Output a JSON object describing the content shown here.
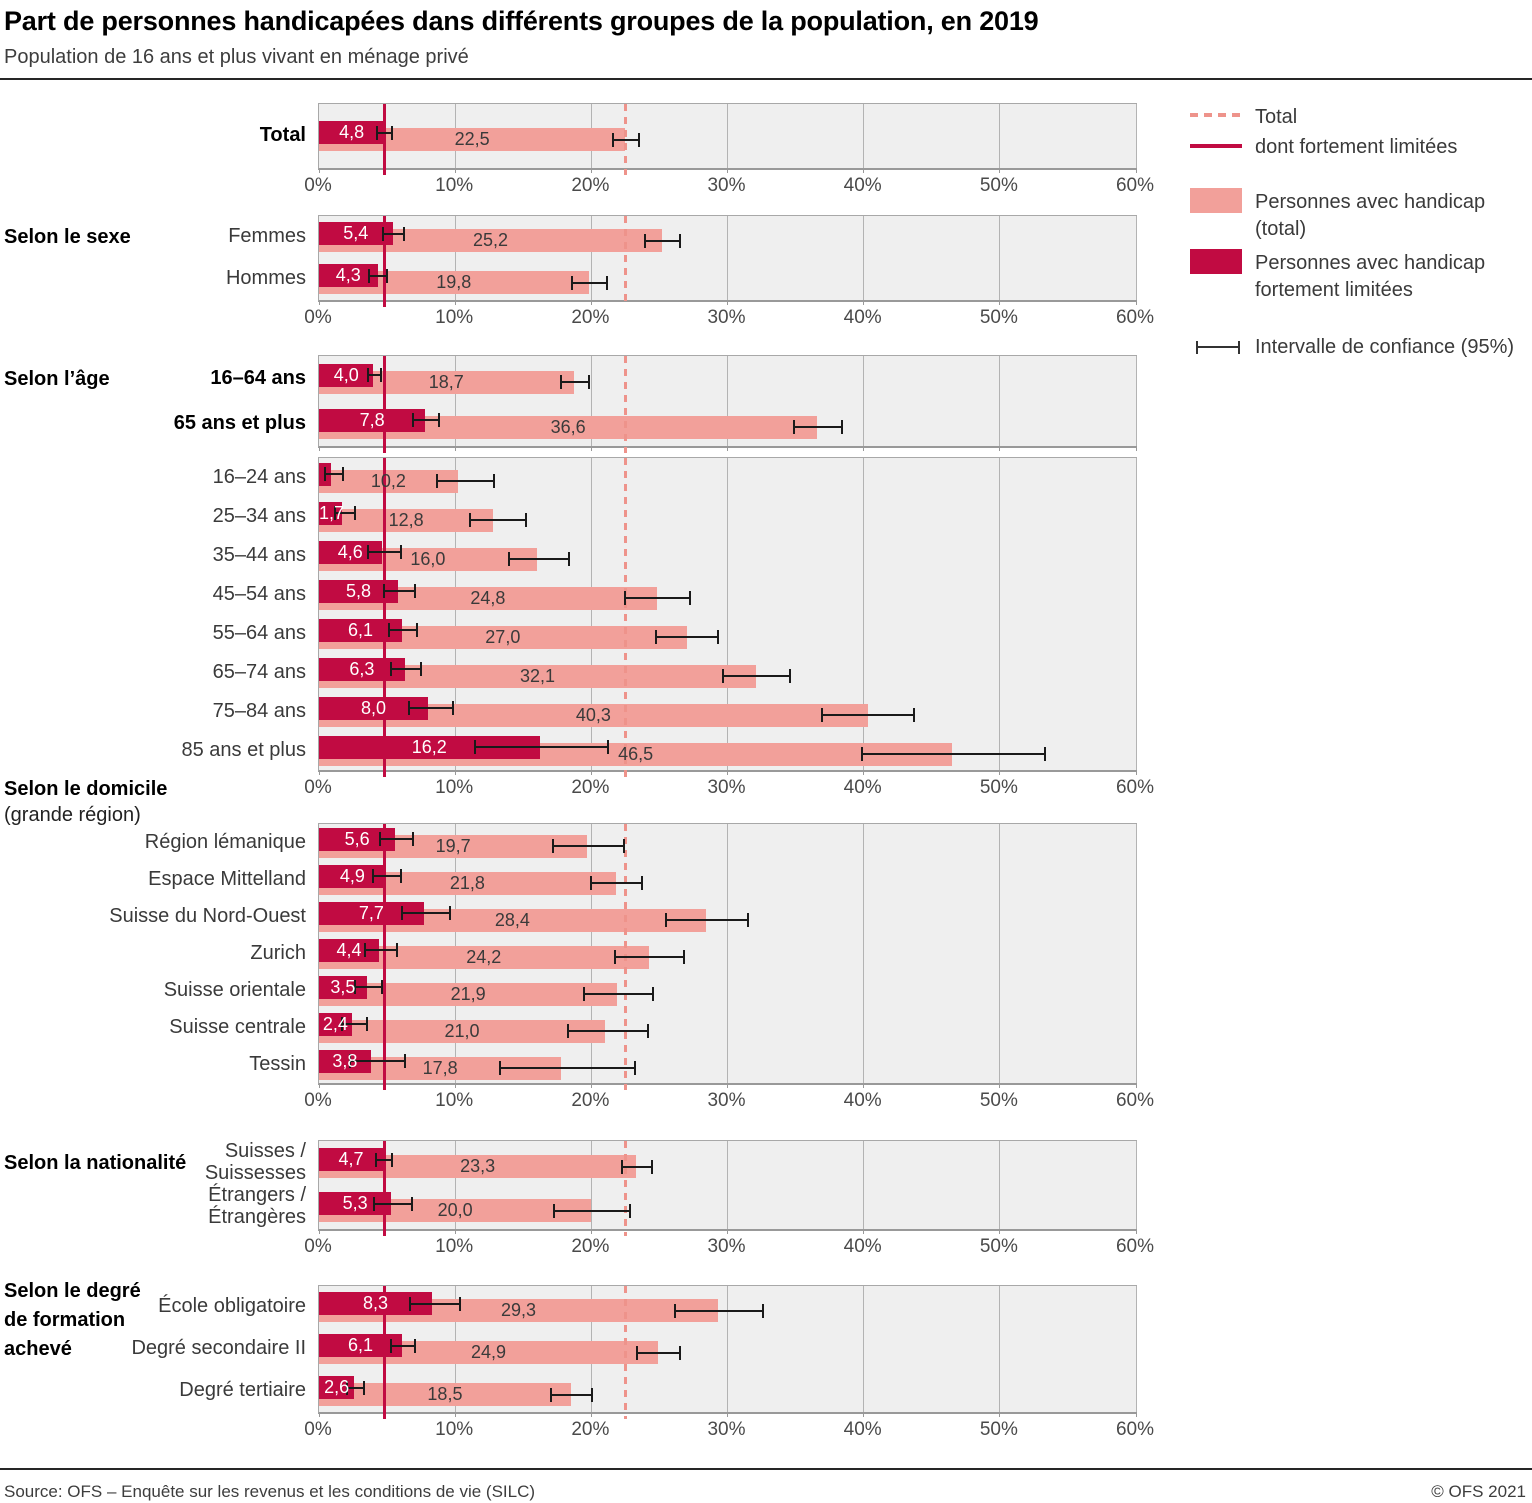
{
  "header": {
    "title": "Part de personnes handicapées dans différents groupes de la population, en 2019",
    "subtitle": "Population de 16 ans et plus vivant en ménage privé"
  },
  "legend": {
    "total_line": "Total",
    "severe_line": "dont fortement limitées",
    "total_bar_line1": "Personnes avec handicap",
    "total_bar_line2": "(total)",
    "severe_bar_line1": "Personnes avec handicap",
    "severe_bar_line2": "fortement limitées",
    "ci_label": "Intervalle de confiance (95%)"
  },
  "footer": {
    "source": "Source: OFS – Enquête sur les revenus et les conditions de vie (SILC)",
    "copyright": "© OFS 2021"
  },
  "chart_data": {
    "type": "bar",
    "orientation": "horizontal",
    "title": "Part de personnes handicapées dans différents groupes de la population, en 2019",
    "unit": "%",
    "xlim": [
      0,
      60
    ],
    "xticks": [
      "0%",
      "10%",
      "20%",
      "30%",
      "40%",
      "50%",
      "60%"
    ],
    "grid": true,
    "legend_position": "right",
    "colors": {
      "total_bar": "#f2a09a",
      "severe_bar": "#c10b42",
      "total_refline": "#ee938b",
      "ci": "#1a1a1a"
    },
    "series_info": [
      {
        "name": "Personnes avec handicap (total)",
        "key": "total"
      },
      {
        "name": "Personnes avec handicap fortement limitées",
        "key": "severe"
      }
    ],
    "reference_lines": [
      {
        "name": "Total",
        "value": 22.5,
        "style": "dashed"
      },
      {
        "name": "dont fortement limitées",
        "value": 4.8,
        "style": "solid"
      }
    ],
    "sections": [
      {
        "heading": "",
        "show_axis": true,
        "rows": [
          {
            "label": "Total",
            "bold": true,
            "severe": {
              "value": 4.8,
              "display": "4,8",
              "ci": [
                4.2,
                5.4
              ]
            },
            "total": {
              "value": 22.5,
              "display": "22,5",
              "ci": [
                21.5,
                23.6
              ]
            }
          }
        ]
      },
      {
        "heading": "Selon le sexe",
        "show_axis": true,
        "rows": [
          {
            "label": "Femmes",
            "severe": {
              "value": 5.4,
              "display": "5,4",
              "ci": [
                4.6,
                6.3
              ]
            },
            "total": {
              "value": 25.2,
              "display": "25,2",
              "ci": [
                23.9,
                26.6
              ]
            }
          },
          {
            "label": "Hommes",
            "severe": {
              "value": 4.3,
              "display": "4,3",
              "ci": [
                3.6,
                5.1
              ]
            },
            "total": {
              "value": 19.8,
              "display": "19,8",
              "ci": [
                18.5,
                21.2
              ]
            }
          }
        ]
      },
      {
        "heading": "Selon l’âge",
        "show_axis": false,
        "rows": [
          {
            "label": "16–64 ans",
            "bold": true,
            "severe": {
              "value": 4.0,
              "display": "4,0",
              "ci": [
                3.5,
                4.6
              ]
            },
            "total": {
              "value": 18.7,
              "display": "18,7",
              "ci": [
                17.7,
                19.9
              ]
            }
          },
          {
            "label": "65 ans et plus",
            "bold": true,
            "severe": {
              "value": 7.8,
              "display": "7,8",
              "ci": [
                6.8,
                8.9
              ]
            },
            "total": {
              "value": 36.6,
              "display": "36,6",
              "ci": [
                34.8,
                38.5
              ]
            }
          }
        ]
      },
      {
        "heading": "",
        "show_axis": true,
        "rows": [
          {
            "label": "16–24 ans",
            "severe": {
              "value": 0.9,
              "display": "",
              "ci": [
                0.4,
                1.8
              ]
            },
            "total": {
              "value": 10.2,
              "display": "10,2",
              "ci": [
                8.6,
                12.9
              ]
            }
          },
          {
            "label": "25–34 ans",
            "severe": {
              "value": 1.7,
              "display": "1,7",
              "ci": [
                1.1,
                2.7
              ]
            },
            "total": {
              "value": 12.8,
              "display": "12,8",
              "ci": [
                11.0,
                15.3
              ]
            }
          },
          {
            "label": "35–44 ans",
            "severe": {
              "value": 4.6,
              "display": "4,6",
              "ci": [
                3.5,
                6.1
              ]
            },
            "total": {
              "value": 16.0,
              "display": "16,0",
              "ci": [
                13.9,
                18.4
              ]
            }
          },
          {
            "label": "45–54 ans",
            "severe": {
              "value": 5.8,
              "display": "5,8",
              "ci": [
                4.7,
                7.1
              ]
            },
            "total": {
              "value": 24.8,
              "display": "24,8",
              "ci": [
                22.4,
                27.3
              ]
            }
          },
          {
            "label": "55–64 ans",
            "severe": {
              "value": 6.1,
              "display": "6,1",
              "ci": [
                5.1,
                7.3
              ]
            },
            "total": {
              "value": 27.0,
              "display": "27,0",
              "ci": [
                24.7,
                29.4
              ]
            }
          },
          {
            "label": "65–74 ans",
            "severe": {
              "value": 6.3,
              "display": "6,3",
              "ci": [
                5.2,
                7.6
              ]
            },
            "total": {
              "value": 32.1,
              "display": "32,1",
              "ci": [
                29.6,
                34.7
              ]
            }
          },
          {
            "label": "75–84 ans",
            "severe": {
              "value": 8.0,
              "display": "8,0",
              "ci": [
                6.5,
                9.9
              ]
            },
            "total": {
              "value": 40.3,
              "display": "40,3",
              "ci": [
                36.9,
                43.8
              ]
            }
          },
          {
            "label": "85 ans et plus",
            "severe": {
              "value": 16.2,
              "display": "16,2",
              "ci": [
                11.4,
                21.3
              ]
            },
            "total": {
              "value": 46.5,
              "display": "46,5",
              "ci": [
                39.8,
                53.4
              ]
            }
          }
        ]
      },
      {
        "heading": "Selon le domicile",
        "heading2": "(grande région)",
        "show_axis": true,
        "rows": [
          {
            "label": "Région lémanique",
            "severe": {
              "value": 5.6,
              "display": "5,6",
              "ci": [
                4.4,
                7.0
              ]
            },
            "total": {
              "value": 19.7,
              "display": "19,7",
              "ci": [
                17.1,
                22.5
              ]
            }
          },
          {
            "label": "Espace Mittelland",
            "severe": {
              "value": 4.9,
              "display": "4,9",
              "ci": [
                3.9,
                6.1
              ]
            },
            "total": {
              "value": 21.8,
              "display": "21,8",
              "ci": [
                19.9,
                23.8
              ]
            }
          },
          {
            "label": "Suisse du Nord-Ouest",
            "severe": {
              "value": 7.7,
              "display": "7,7",
              "ci": [
                6.0,
                9.7
              ]
            },
            "total": {
              "value": 28.4,
              "display": "28,4",
              "ci": [
                25.4,
                31.6
              ]
            }
          },
          {
            "label": "Zurich",
            "severe": {
              "value": 4.4,
              "display": "4,4",
              "ci": [
                3.3,
                5.8
              ]
            },
            "total": {
              "value": 24.2,
              "display": "24,2",
              "ci": [
                21.7,
                26.9
              ]
            }
          },
          {
            "label": "Suisse orientale",
            "severe": {
              "value": 3.5,
              "display": "3,5",
              "ci": [
                2.6,
                4.7
              ]
            },
            "total": {
              "value": 21.9,
              "display": "21,9",
              "ci": [
                19.4,
                24.6
              ]
            }
          },
          {
            "label": "Suisse centrale",
            "severe": {
              "value": 2.4,
              "display": "2,4",
              "ci": [
                1.6,
                3.6
              ]
            },
            "total": {
              "value": 21.0,
              "display": "21,0",
              "ci": [
                18.2,
                24.2
              ]
            }
          },
          {
            "label": "Tessin",
            "severe": {
              "value": 3.8,
              "display": "3,8",
              "ci": [
                2.2,
                6.4
              ]
            },
            "total": {
              "value": 17.8,
              "display": "17,8",
              "ci": [
                13.2,
                23.3
              ]
            }
          }
        ]
      },
      {
        "heading": "Selon la nationalité",
        "show_axis": true,
        "rows": [
          {
            "label": "Suisses /\nSuissesses",
            "severe": {
              "value": 4.7,
              "display": "4,7",
              "ci": [
                4.1,
                5.4
              ]
            },
            "total": {
              "value": 23.3,
              "display": "23,3",
              "ci": [
                22.2,
                24.5
              ]
            }
          },
          {
            "label": "Étrangers /\nÉtrangères",
            "severe": {
              "value": 5.3,
              "display": "5,3",
              "ci": [
                4.0,
                6.9
              ]
            },
            "total": {
              "value": 20.0,
              "display": "20,0",
              "ci": [
                17.2,
                22.9
              ]
            }
          }
        ]
      },
      {
        "heading": "Selon le degré\nde formation\nachevé",
        "show_axis": true,
        "rows": [
          {
            "label": "École obligatoire",
            "severe": {
              "value": 8.3,
              "display": "8,3",
              "ci": [
                6.6,
                10.4
              ]
            },
            "total": {
              "value": 29.3,
              "display": "29,3",
              "ci": [
                26.1,
                32.7
              ]
            }
          },
          {
            "label": "Degré secondaire II",
            "severe": {
              "value": 6.1,
              "display": "6,1",
              "ci": [
                5.2,
                7.1
              ]
            },
            "total": {
              "value": 24.9,
              "display": "24,9",
              "ci": [
                23.3,
                26.6
              ]
            }
          },
          {
            "label": "Degré tertiaire",
            "severe": {
              "value": 2.6,
              "display": "2,6",
              "ci": [
                2.0,
                3.4
              ]
            },
            "total": {
              "value": 18.5,
              "display": "18,5",
              "ci": [
                17.0,
                20.1
              ]
            }
          }
        ]
      }
    ]
  }
}
